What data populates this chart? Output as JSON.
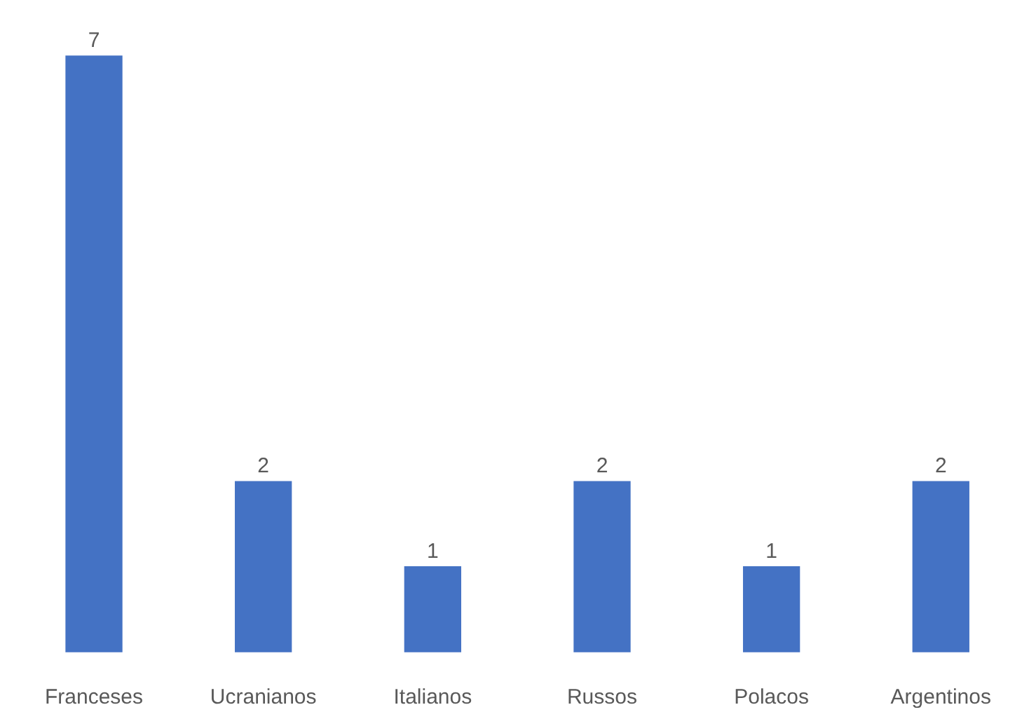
{
  "chart_data": {
    "type": "bar",
    "categories": [
      "Franceses",
      "Ucranianos",
      "Italianos",
      "Russos",
      "Polacos",
      "Argentinos"
    ],
    "values": [
      7,
      2,
      1,
      2,
      1,
      2
    ],
    "color": "#4472c4",
    "data_labels": true,
    "grid": false,
    "legend": false
  }
}
